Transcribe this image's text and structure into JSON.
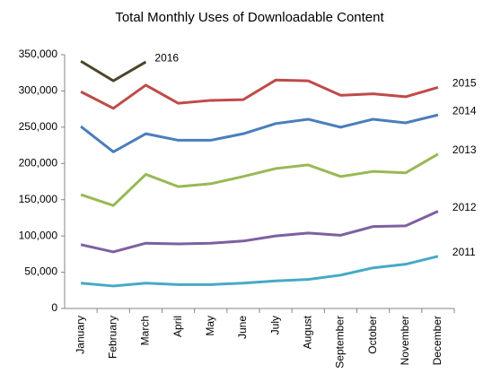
{
  "chart_data": {
    "type": "line",
    "title": "Total Monthly Uses of Downloadable Content",
    "categories": [
      "January",
      "February",
      "March",
      "April",
      "May",
      "June",
      "July",
      "August",
      "September",
      "October",
      "November",
      "December"
    ],
    "ylim": [
      0,
      350000
    ],
    "yticks": [
      0,
      {
        "value": 50000,
        "label": "50,000"
      },
      {
        "value": 100000,
        "label": "100,000"
      },
      {
        "value": 150000,
        "label": "150,000"
      },
      {
        "value": 200000,
        "label": "200,000"
      },
      {
        "value": 250000,
        "label": "250,000"
      },
      {
        "value": 300000,
        "label": "300,000"
      },
      {
        "value": 350000,
        "label": "350,000"
      }
    ],
    "grid": false,
    "series": [
      {
        "name": "2016",
        "color": "#4a452a",
        "values": [
          341000,
          314000,
          340000,
          null,
          null,
          null,
          null,
          null,
          null,
          null,
          null,
          null
        ]
      },
      {
        "name": "2015",
        "color": "#be4b48",
        "values": [
          299000,
          276000,
          308000,
          283000,
          287000,
          288000,
          315000,
          314000,
          294000,
          296000,
          292000,
          305000
        ]
      },
      {
        "name": "2014",
        "color": "#4a7ebb",
        "values": [
          251000,
          216000,
          241000,
          232000,
          232000,
          241000,
          255000,
          261000,
          250000,
          261000,
          256000,
          267000
        ]
      },
      {
        "name": "2013",
        "color": "#98b954",
        "values": [
          157000,
          142000,
          185000,
          168000,
          172000,
          182000,
          193000,
          198000,
          182000,
          189000,
          187000,
          213000
        ]
      },
      {
        "name": "2012",
        "color": "#7d60a0",
        "values": [
          88000,
          78000,
          90000,
          89000,
          90000,
          93000,
          100000,
          104000,
          101000,
          113000,
          114000,
          134000
        ]
      },
      {
        "name": "2011",
        "color": "#46aac5",
        "values": [
          35000,
          31000,
          35000,
          33000,
          33000,
          35000,
          38000,
          40000,
          46000,
          56000,
          61000,
          72000
        ]
      }
    ]
  }
}
